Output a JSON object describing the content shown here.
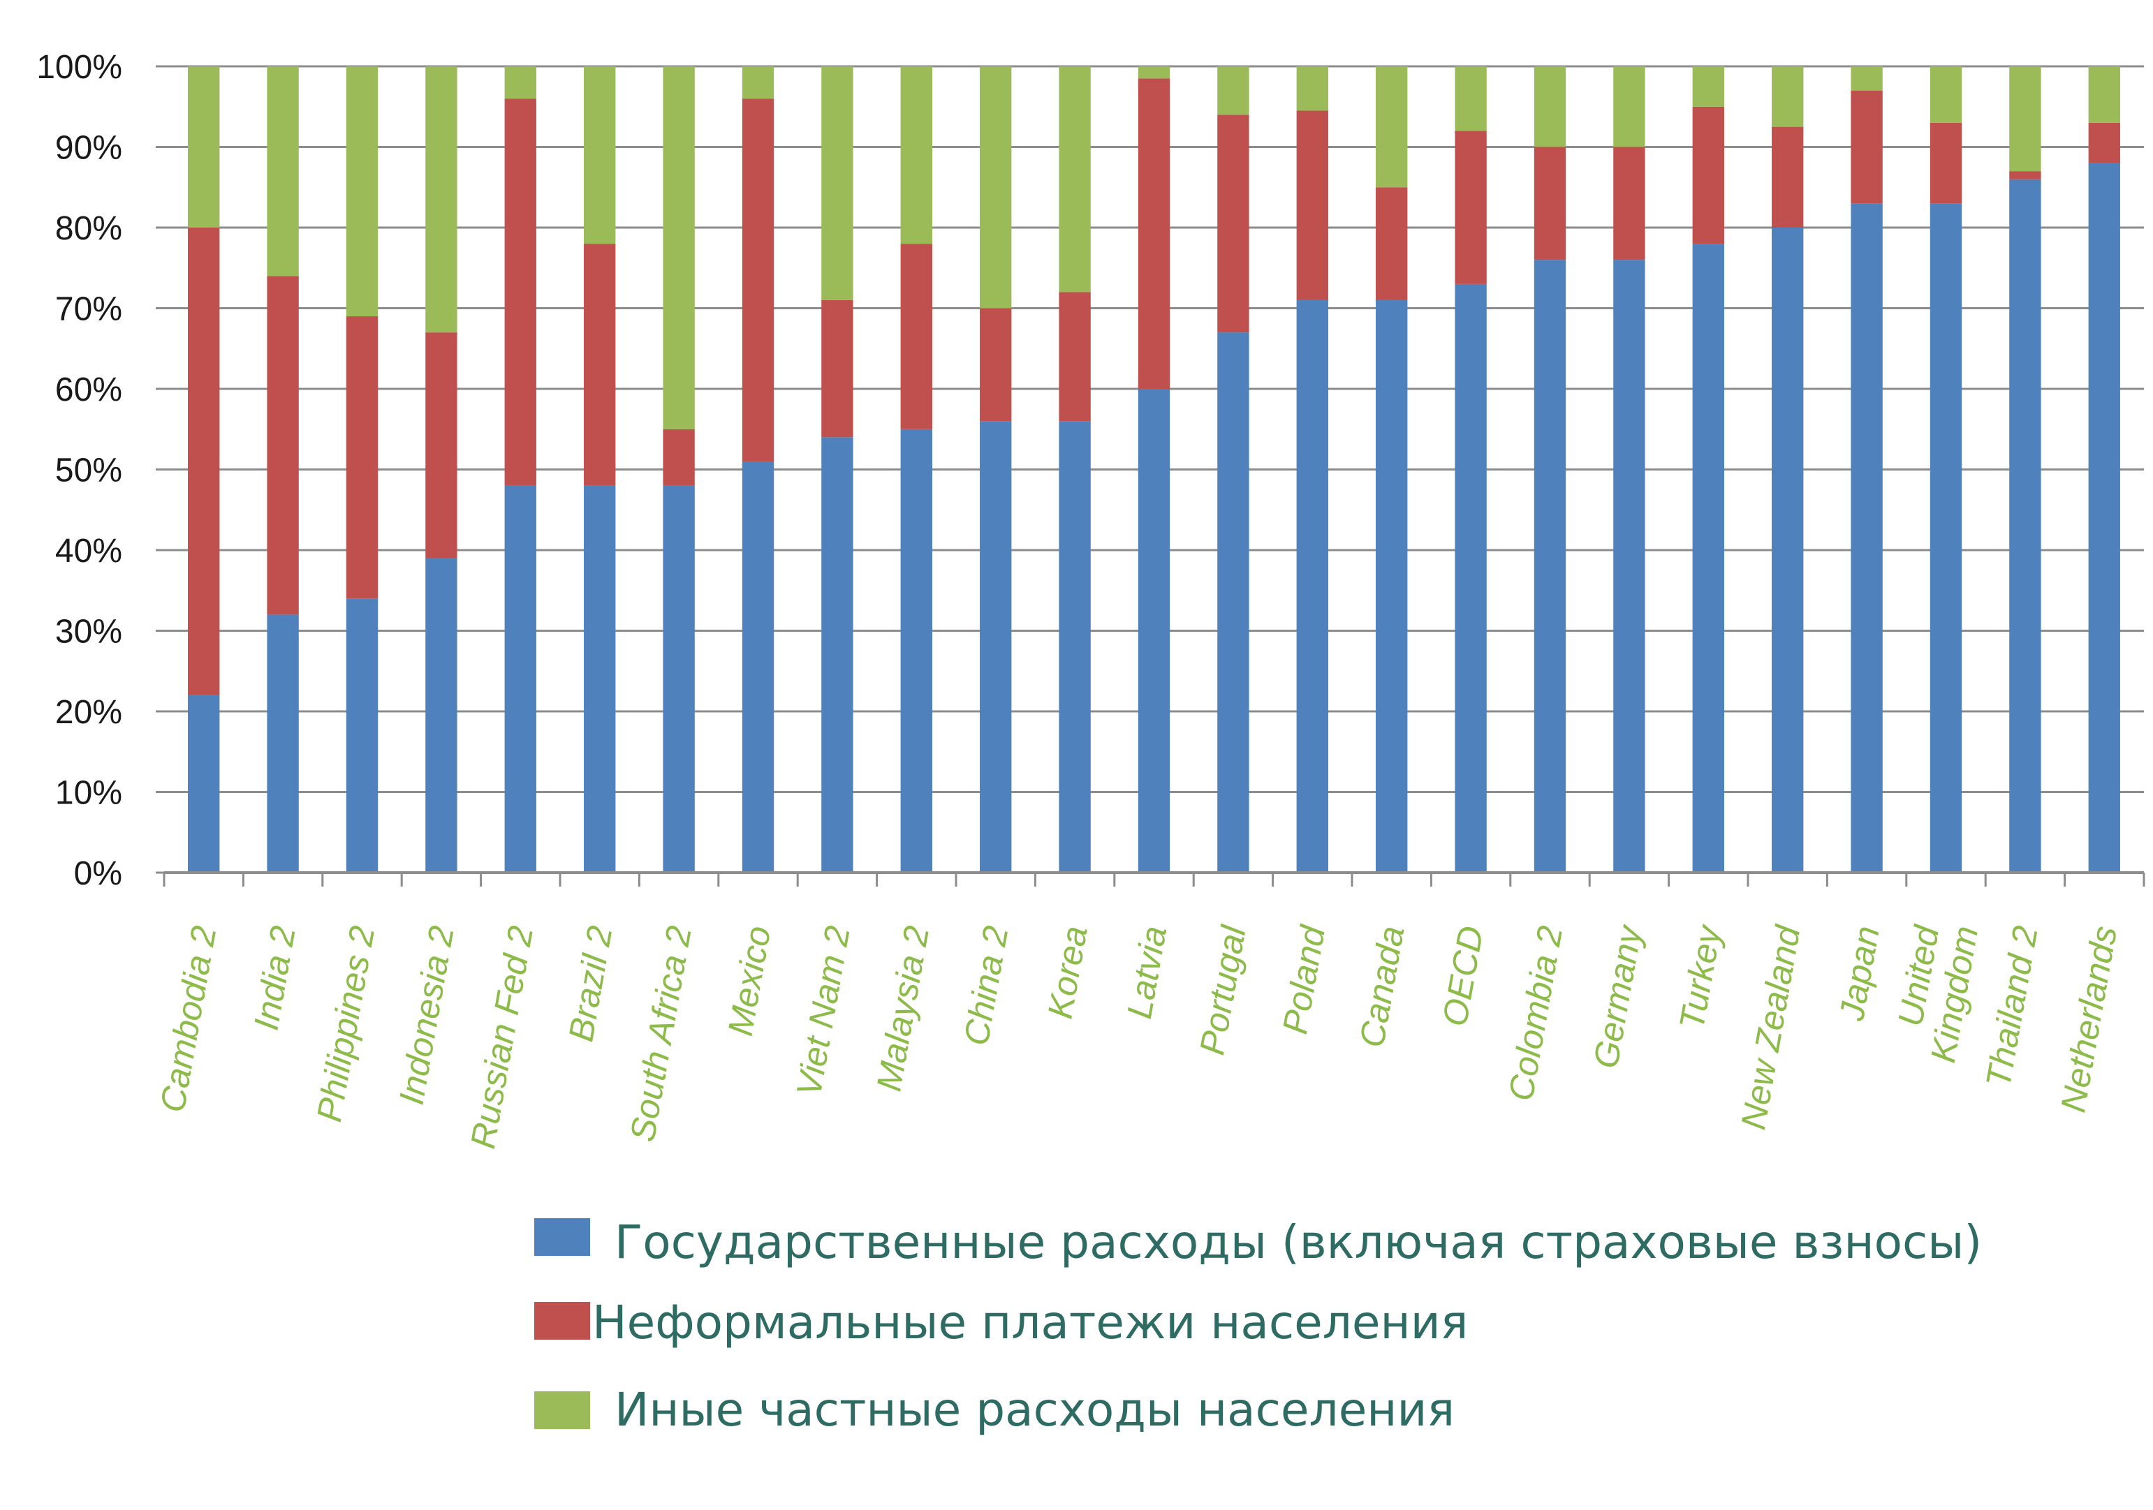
{
  "chart_data": {
    "type": "bar",
    "stacked": true,
    "title": "",
    "xlabel": "",
    "ylabel": "",
    "ylim": [
      0,
      100
    ],
    "y_ticks": [
      "0%",
      "10%",
      "20%",
      "30%",
      "40%",
      "50%",
      "60%",
      "70%",
      "80%",
      "90%",
      "100%"
    ],
    "grid": "horizontal",
    "legend_position": "bottom",
    "categories": [
      "Cambodia 2",
      "India 2",
      "Philippines 2",
      "Indonesia 2",
      "Russian Fed 2",
      "Brazil 2",
      "South Africa 2",
      "Mexico",
      "Viet Nam 2",
      "Malaysia 2",
      "China 2",
      "Korea",
      "Latvia",
      "Portugal",
      "Poland",
      "Canada",
      "OECD",
      "Colombia 2",
      "Germany",
      "Turkey",
      "New Zealand",
      "Japan",
      "United Kingdom",
      "Thailand 2",
      "Netherlands"
    ],
    "category_lines": [
      [
        "Cambodia 2"
      ],
      [
        "India 2"
      ],
      [
        "Philippines 2"
      ],
      [
        "Indonesia 2"
      ],
      [
        "Russian Fed 2"
      ],
      [
        "Brazil 2"
      ],
      [
        "South Africa 2"
      ],
      [
        "Mexico"
      ],
      [
        "Viet Nam 2"
      ],
      [
        "Malaysia 2"
      ],
      [
        "China 2"
      ],
      [
        "Korea"
      ],
      [
        "Latvia"
      ],
      [
        "Portugal"
      ],
      [
        "Poland"
      ],
      [
        "Canada"
      ],
      [
        "OECD"
      ],
      [
        "Colombia 2"
      ],
      [
        "Germany"
      ],
      [
        "Turkey"
      ],
      [
        "New Zealand"
      ],
      [
        "Japan"
      ],
      [
        "United",
        "Kingdom"
      ],
      [
        "Thailand 2"
      ],
      [
        "Netherlands"
      ]
    ],
    "series": [
      {
        "name": "Государственные расходы (включая страховые взносы)",
        "color": "#4f81bd",
        "values": [
          22,
          32,
          34,
          39,
          48,
          48,
          48,
          51,
          54,
          55,
          56,
          56,
          60,
          67,
          71,
          71,
          73,
          76,
          76,
          78,
          80,
          83,
          83,
          86,
          88
        ]
      },
      {
        "name": "Неформальные платежи населения",
        "color": "#c0504d",
        "values": [
          58,
          42,
          35,
          28,
          48,
          30,
          7,
          45,
          17,
          23,
          14,
          16,
          38.5,
          27,
          23.5,
          14,
          19,
          14,
          14,
          17,
          12.5,
          14,
          10,
          1,
          5
        ]
      },
      {
        "name": "Иные частные расходы населения",
        "color": "#9bbb59",
        "values": [
          20,
          26,
          31,
          33,
          4,
          22,
          45,
          4,
          29,
          22,
          30,
          28,
          1.5,
          6,
          5.5,
          15,
          8,
          10,
          10,
          5,
          7.5,
          3,
          7,
          13,
          7
        ]
      }
    ]
  },
  "legend": {
    "items": [
      {
        "label": "Государственные расходы (включая страховые взносы)",
        "color": "#4f81bd"
      },
      {
        "label": "Неформальные платежи населения",
        "color": "#c0504d"
      },
      {
        "label": "Иные частные расходы населения",
        "color": "#9bbb59"
      }
    ]
  },
  "colors": {
    "grid": "#8c8c8c",
    "axis": "#8c8c8c",
    "tick_text": "#1a1a1a",
    "category_text": "#8dbb49",
    "legend_text": "#2e6b63"
  }
}
